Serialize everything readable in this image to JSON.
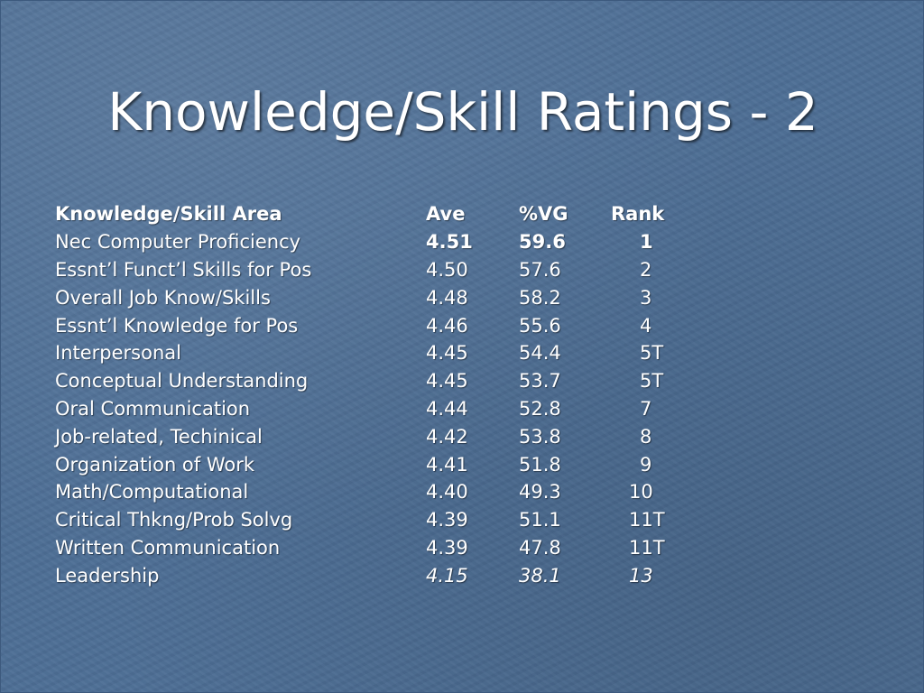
{
  "slide": {
    "title": "Knowledge/Skill Ratings - 2"
  },
  "table": {
    "headers": [
      "Knowledge/Skill Area",
      "Ave",
      "%VG",
      "Rank"
    ],
    "rows": [
      [
        "Nec Computer Proficiency",
        "4.51",
        "59.6",
        "1"
      ],
      [
        "Essnt’l Funct’l Skills for Pos",
        "4.50",
        "57.6",
        "2"
      ],
      [
        "Overall Job Know/Skills",
        "4.48",
        "58.2",
        "3"
      ],
      [
        "Essnt’l Knowledge for Pos",
        "4.46",
        "55.6",
        "4"
      ],
      [
        "Interpersonal",
        "4.45",
        "54.4",
        "5T"
      ],
      [
        "Conceptual Understanding",
        "4.45",
        "53.7",
        "5T"
      ],
      [
        "Oral Communication",
        "4.44",
        "52.8",
        "7"
      ],
      [
        "Job-related, Techinical",
        "4.42",
        "53.8",
        "8"
      ],
      [
        "Organization of Work",
        "4.41",
        "51.8",
        "9"
      ],
      [
        "Math/Computational",
        "4.40",
        "49.3",
        "10"
      ],
      [
        "Critical Thkng/Prob Solvg",
        "4.39",
        "51.1",
        "11T"
      ],
      [
        "Written Communication",
        "4.39",
        "47.8",
        "11T"
      ],
      [
        "Leadership",
        "4.15",
        "38.1",
        "13"
      ]
    ]
  },
  "colors": {
    "background": "#4d6e95",
    "text": "#ffffff"
  }
}
